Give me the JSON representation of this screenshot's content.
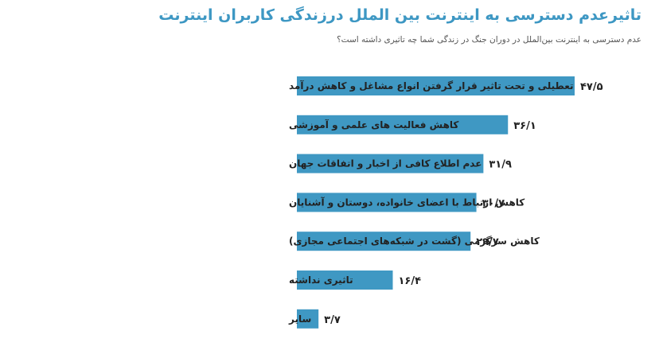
{
  "title": "تاثیرعدم دسترسی به اینترنت بین الملل درزندگی کاربران اینترنت",
  "subtitle": "عدم دسترسی به اینترنت بین‌الملل در دوران جنگ در زندگی شما چه تاثیری داشته است؟",
  "colors": {
    "bar": "#3f98c3",
    "title": "#3d97c3"
  },
  "chart_data": {
    "type": "bar",
    "orientation": "horizontal",
    "categories": [
      "تعطیلی و تحت تاثیر قرار گرفتن انواع مشاغل و کاهش درآمد",
      "کاهش فعالیت های علمی و آموزشی",
      "عدم اطلاع کافی از اخبار و اتفاقات جهان",
      "کاهش ارتباط با اعضای خانواده، دوستان و آشنایان",
      "کاهش سرگرمی (گشت در شبکه‌های اجتماعی مجازی)",
      "تاثیری نداشته",
      "سایر"
    ],
    "values": [
      47.5,
      36.1,
      31.9,
      30.7,
      29.7,
      16.4,
      3.7
    ],
    "value_labels": [
      "۴۷/۵",
      "۳۶/۱",
      "۳۱/۹",
      "۳۰/۷",
      "۲۹/۷",
      "۱۶/۴",
      "۳/۷"
    ],
    "xlim": [
      0,
      47.5
    ],
    "grid": false
  }
}
